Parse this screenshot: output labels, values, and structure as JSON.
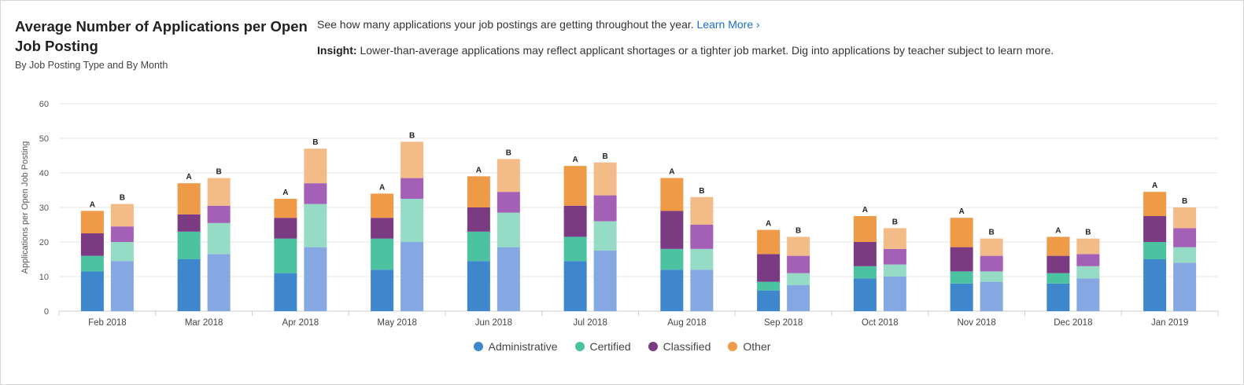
{
  "header": {
    "title": "Average Number of Applications per Open Job Posting",
    "subtitle": "By Job Posting Type and By Month",
    "description": "See how many applications your job postings are getting throughout the year.",
    "learn_more": "Learn More",
    "learn_more_chevron": "›",
    "insight_label": "Insight:",
    "insight_text": "Lower-than-average applications may reflect applicant shortages or a tighter job market. Dig into applications by teacher subject to learn more."
  },
  "colors": {
    "Administrative": "#3f87cc",
    "Certified": "#4cc3a0",
    "Classified": "#7b3b82",
    "Other": "#ee9a47",
    "Administrative_B": "#86a8e2",
    "Certified_B": "#95dbc5",
    "Classified_B": "#a45fb7",
    "Other_B": "#f3bb87",
    "grid": "#e6e6e6",
    "axis_text": "#555555"
  },
  "chart_data": {
    "type": "bar",
    "stacked": true,
    "title": "Average Number of Applications per Open Job Posting",
    "ylabel": "Applications per Open Job Posting",
    "xlabel": "",
    "ylim": [
      0,
      60
    ],
    "yticks": [
      0,
      10,
      20,
      30,
      40,
      50,
      60
    ],
    "grid": true,
    "legend_position": "bottom",
    "groups": [
      "A",
      "B"
    ],
    "categories": [
      "Feb 2018",
      "Mar 2018",
      "Apr 2018",
      "May 2018",
      "Jun 2018",
      "Jul 2018",
      "Aug 2018",
      "Sep 2018",
      "Oct 2018",
      "Nov 2018",
      "Dec 2018",
      "Jan 2019"
    ],
    "series": [
      {
        "name": "Administrative",
        "A": [
          11.5,
          15,
          11,
          12,
          14.5,
          14.5,
          12,
          6,
          9.5,
          8,
          8,
          15
        ],
        "B": [
          14.5,
          16.5,
          18.5,
          20,
          18.5,
          17.5,
          12,
          7.5,
          10,
          8.5,
          9.5,
          14
        ]
      },
      {
        "name": "Certified",
        "A": [
          4.5,
          8,
          10,
          9,
          8.5,
          7,
          6,
          2.5,
          3.5,
          3.5,
          3,
          5
        ],
        "B": [
          5.5,
          9,
          12.5,
          12.5,
          10,
          8.5,
          6,
          3.5,
          3.5,
          3,
          3.5,
          4.5
        ]
      },
      {
        "name": "Classified",
        "A": [
          6.5,
          5,
          6,
          6,
          7,
          9,
          11,
          8,
          7,
          7,
          5,
          7.5
        ],
        "B": [
          4.5,
          5,
          6,
          6,
          6,
          7.5,
          7,
          5,
          4.5,
          4.5,
          3.5,
          5.5
        ]
      },
      {
        "name": "Other",
        "A": [
          6.5,
          9,
          5.5,
          7,
          9,
          11.5,
          9.5,
          7,
          7.5,
          8.5,
          5.5,
          7
        ],
        "B": [
          6.5,
          8,
          10,
          10.5,
          9.5,
          9.5,
          8,
          5.5,
          6,
          5,
          4.5,
          6
        ]
      }
    ]
  }
}
